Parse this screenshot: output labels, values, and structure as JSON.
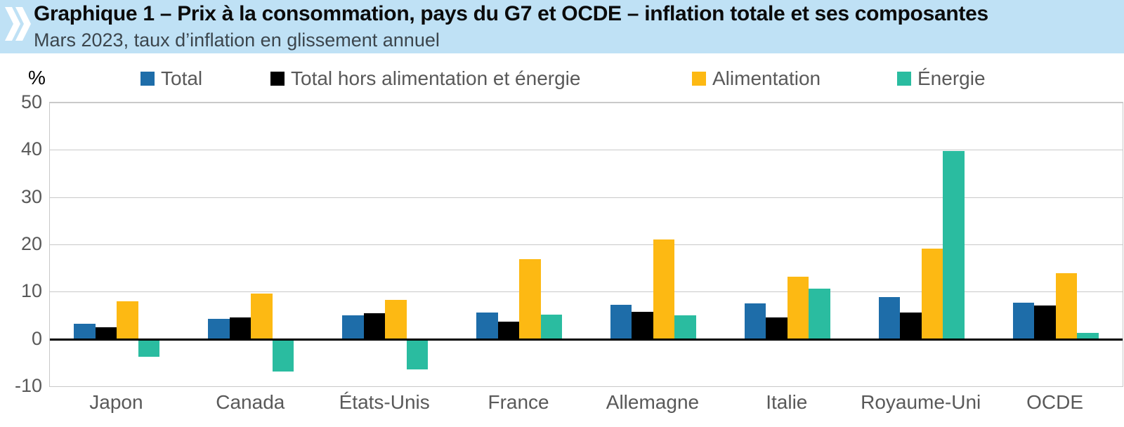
{
  "header": {
    "title": "Graphique 1 – Prix à la consommation, pays du G7 et OCDE – inflation totale et ses composantes",
    "subtitle": "Mars 2023, taux d’inflation en glissement annuel",
    "band_color": "#BFE1F5",
    "logo_icon": "oecd-double-chevron",
    "logo_color": "#FFFFFF"
  },
  "chart_data": {
    "type": "bar",
    "title": "Prix à la consommation, pays du G7 et OCDE – inflation totale et ses composantes",
    "unit_label": "%",
    "categories": [
      "Japon",
      "Canada",
      "États-Unis",
      "France",
      "Allemagne",
      "Italie",
      "Royaume-Uni",
      "OCDE"
    ],
    "series": [
      {
        "name": "Total",
        "color": "#1E6DA9",
        "values": [
          3.2,
          4.3,
          5.0,
          5.6,
          7.3,
          7.5,
          8.9,
          7.7
        ]
      },
      {
        "name": "Total hors alimentation et énergie",
        "color": "#000000",
        "values": [
          2.5,
          4.5,
          5.5,
          3.6,
          5.7,
          4.6,
          5.6,
          7.1
        ]
      },
      {
        "name": "Alimentation",
        "color": "#FDB913",
        "values": [
          7.9,
          9.6,
          8.3,
          16.9,
          21.1,
          13.1,
          19.1,
          13.9
        ]
      },
      {
        "name": "Énergie",
        "color": "#2ABCA0",
        "values": [
          -3.7,
          -6.9,
          -6.4,
          5.2,
          5.0,
          10.7,
          39.7,
          1.3
        ]
      }
    ],
    "ylim": [
      -10,
      50
    ],
    "yticks": [
      50,
      40,
      30,
      20,
      10,
      0,
      -10
    ],
    "grid": true,
    "legend_position": "top",
    "gridline_color": "#C9C9C9",
    "axis_text_color": "#595959"
  },
  "legend_x_positions": [
    200,
    385,
    985,
    1277
  ]
}
